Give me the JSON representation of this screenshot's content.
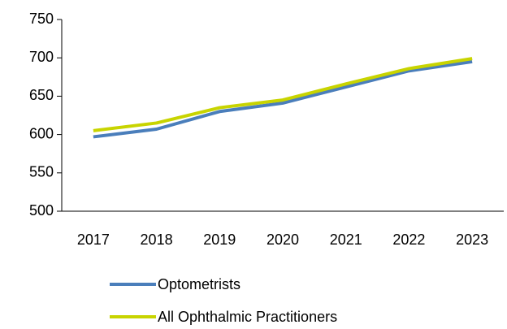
{
  "chart_data": {
    "type": "line",
    "categories": [
      "2017",
      "2018",
      "2019",
      "2020",
      "2021",
      "2022",
      "2023"
    ],
    "series": [
      {
        "name": "Optometrists",
        "color": "#4a7ebb",
        "values": [
          597,
          607,
          630,
          641,
          662,
          683,
          695
        ]
      },
      {
        "name": "All Ophthalmic Practitioners",
        "color": "#c8d400",
        "values": [
          605,
          615,
          635,
          645,
          666,
          686,
          699
        ]
      }
    ],
    "ylim": [
      500,
      750
    ],
    "yticks": [
      500,
      550,
      600,
      650,
      700,
      750
    ],
    "grid": false,
    "legend": "bottom"
  }
}
